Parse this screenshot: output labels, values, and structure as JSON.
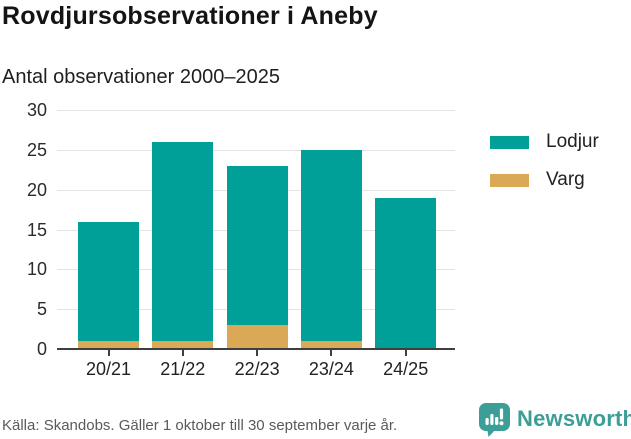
{
  "title": "Rovdjursobservationer i Aneby",
  "subtitle": "Antal observationer 2000–2025",
  "footer": {
    "source": "Källa: Skandobs. Gäller 1 oktober till 30 september varje år.",
    "brand": "Newsworthy",
    "logo_icon": "newsworthy-chart-bubble-icon"
  },
  "colors": {
    "lodjur_teal": "#00A099",
    "varg_gold": "#DBA955",
    "axis": "#3F3F3F",
    "grid": "#E3E3E3",
    "title_text": "#141414",
    "body_text": "#222222",
    "muted_text": "#5A5A5A",
    "brand_teal": "#3D9E97"
  },
  "chart_data": {
    "type": "bar",
    "stacked": true,
    "title": "Rovdjursobservationer i Aneby",
    "subtitle": "Antal observationer 2000–2025",
    "categories": [
      "20/21",
      "21/22",
      "22/23",
      "23/24",
      "24/25"
    ],
    "series": [
      {
        "name": "Lodjur",
        "color": "#00A099",
        "values": [
          15,
          25,
          20,
          24,
          19
        ]
      },
      {
        "name": "Varg",
        "color": "#DBA955",
        "values": [
          1,
          1,
          3,
          1,
          0
        ]
      }
    ],
    "stack_totals": [
      16,
      26,
      23,
      25,
      19
    ],
    "xlabel": "",
    "ylabel": "",
    "ylim": [
      0,
      30
    ],
    "yticks": [
      0,
      5,
      10,
      15,
      20,
      25,
      30
    ],
    "grid": true,
    "legend_position": "right",
    "legend_entries": [
      "Lodjur",
      "Varg"
    ]
  }
}
